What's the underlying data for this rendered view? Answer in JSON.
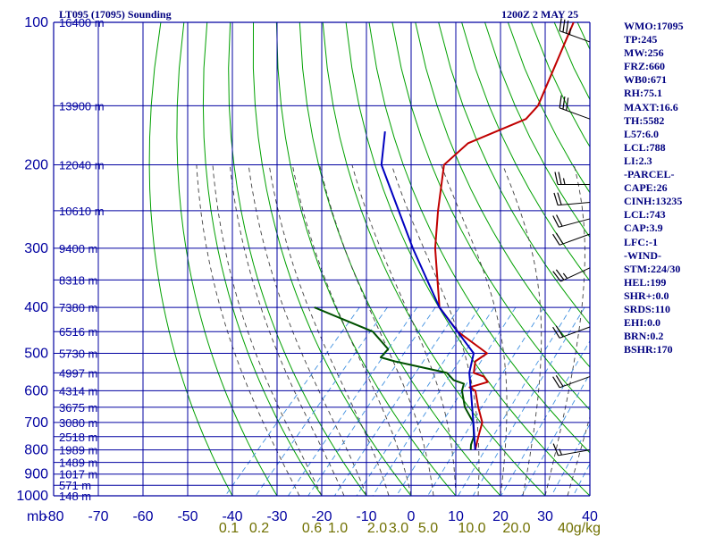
{
  "header": {
    "station_title": "LT095 (17095) Sounding",
    "time_label": "1200Z  2 MAY 25"
  },
  "indices": [
    "WMO:17095",
    "TP:245",
    "MW:256",
    "FRZ:660",
    "WB0:671",
    "RH:75.1",
    "MAXT:16.6",
    "TH:5582",
    "L57:6.0",
    "LCL:788",
    "LI:2.3",
    "-PARCEL-",
    "CAPE:26",
    "CINH:13235",
    "LCL:743",
    "CAP:3.9",
    "LFC:-1",
    "-WIND-",
    "STM:224/30",
    "HEL:199",
    "SHR+:0.0",
    "SRDS:110",
    "EHI:0.0",
    "BRN:0.2",
    "BSHR:170"
  ],
  "colors": {
    "axes_grid": "#0000a0",
    "dry_adiabat": "#00a000",
    "moist_adiabat": "#404040",
    "mixing_ratio": "#4090e0",
    "temperature": "#c00000",
    "dewpoint": "#005000",
    "parcel": "#0000c0",
    "mixing_ratio_label": "#707000"
  },
  "chart_data": {
    "type": "skew-t",
    "x_unit_label": "mb",
    "y_scale": "log-pressure",
    "pressure_ticks": [
      100,
      200,
      300,
      400,
      500,
      600,
      700,
      800,
      900,
      1000
    ],
    "pressure_labels": [
      "100",
      "200",
      "300",
      "400",
      "500",
      "600",
      "700",
      "800",
      "900",
      "1000"
    ],
    "temperature_ticks": [
      -80,
      -70,
      -60,
      -50,
      -40,
      -30,
      -20,
      -10,
      0,
      10,
      20,
      30,
      40
    ],
    "temperature_labels": [
      "-80",
      "-70",
      "-60",
      "-50",
      "-40",
      "-30",
      "-20",
      "-10",
      "0",
      "10",
      "20",
      "30",
      "40"
    ],
    "height_labels": [
      {
        "p": 100,
        "label": "16400 m"
      },
      {
        "p": 150,
        "label": "13900 m"
      },
      {
        "p": 200,
        "label": "12040 m"
      },
      {
        "p": 250,
        "label": "10610 m"
      },
      {
        "p": 300,
        "label": "9400 m"
      },
      {
        "p": 350,
        "label": "8318 m"
      },
      {
        "p": 400,
        "label": "7380 m"
      },
      {
        "p": 450,
        "label": "6516 m"
      },
      {
        "p": 500,
        "label": "5730 m"
      },
      {
        "p": 550,
        "label": "4997 m"
      },
      {
        "p": 600,
        "label": "4314 m"
      },
      {
        "p": 650,
        "label": "3675 m"
      },
      {
        "p": 700,
        "label": "3080 m"
      },
      {
        "p": 750,
        "label": "2518 m"
      },
      {
        "p": 800,
        "label": "1989 m"
      },
      {
        "p": 850,
        "label": "1489 m"
      },
      {
        "p": 900,
        "label": "1017 m"
      },
      {
        "p": 950,
        "label": "571 m"
      },
      {
        "p": 1000,
        "label": "148 m"
      }
    ],
    "mixing_ratio_labels": [
      "0.1",
      "0.2",
      "0.6",
      "1.0",
      "2.0",
      "3.0",
      "5.0",
      "10.0",
      "20.0",
      "40g/kg"
    ],
    "mixing_ratio_values": [
      0.1,
      0.2,
      0.6,
      1.0,
      2.0,
      3.0,
      5.0,
      10.0,
      20.0,
      40.0
    ],
    "series": [
      {
        "key": "temperature",
        "p": [
          100,
          150,
          160,
          180,
          200,
          250,
          300,
          400,
          450,
          500,
          520,
          550,
          560,
          575,
          590,
          600,
          650,
          700,
          750,
          800
        ],
        "t": [
          -60,
          -51,
          -51,
          -59,
          -60,
          -52,
          -45,
          -32,
          -23,
          -12,
          -13,
          -11,
          -8,
          -6,
          -9,
          -7,
          -3,
          1,
          3,
          5
        ]
      },
      {
        "key": "dewpoint",
        "p": [
          400,
          450,
          490,
          510,
          520,
          550,
          570,
          580,
          600,
          650,
          700,
          750,
          780,
          800
        ],
        "t": [
          -60,
          -42,
          -35,
          -35,
          -31,
          -17,
          -14,
          -11,
          -10,
          -6,
          -1,
          2,
          3,
          4
        ]
      },
      {
        "key": "parcel",
        "p": [
          170,
          200,
          300,
          400,
          500,
          550,
          600,
          700,
          800
        ],
        "t": [
          -80,
          -74,
          -50,
          -32,
          -15,
          -12,
          -8,
          -1,
          5
        ]
      }
    ],
    "wind_barbs": [
      {
        "p": 110,
        "dir": 290,
        "kt": 35
      },
      {
        "p": 160,
        "dir": 290,
        "kt": 30
      },
      {
        "p": 220,
        "dir": 270,
        "kt": 25
      },
      {
        "p": 240,
        "dir": 265,
        "kt": 20
      },
      {
        "p": 260,
        "dir": 255,
        "kt": 20
      },
      {
        "p": 280,
        "dir": 250,
        "kt": 20
      },
      {
        "p": 330,
        "dir": 245,
        "kt": 25
      },
      {
        "p": 440,
        "dir": 250,
        "kt": 20
      },
      {
        "p": 560,
        "dir": 250,
        "kt": 20
      },
      {
        "p": 800,
        "dir": 260,
        "kt": 15
      }
    ]
  }
}
